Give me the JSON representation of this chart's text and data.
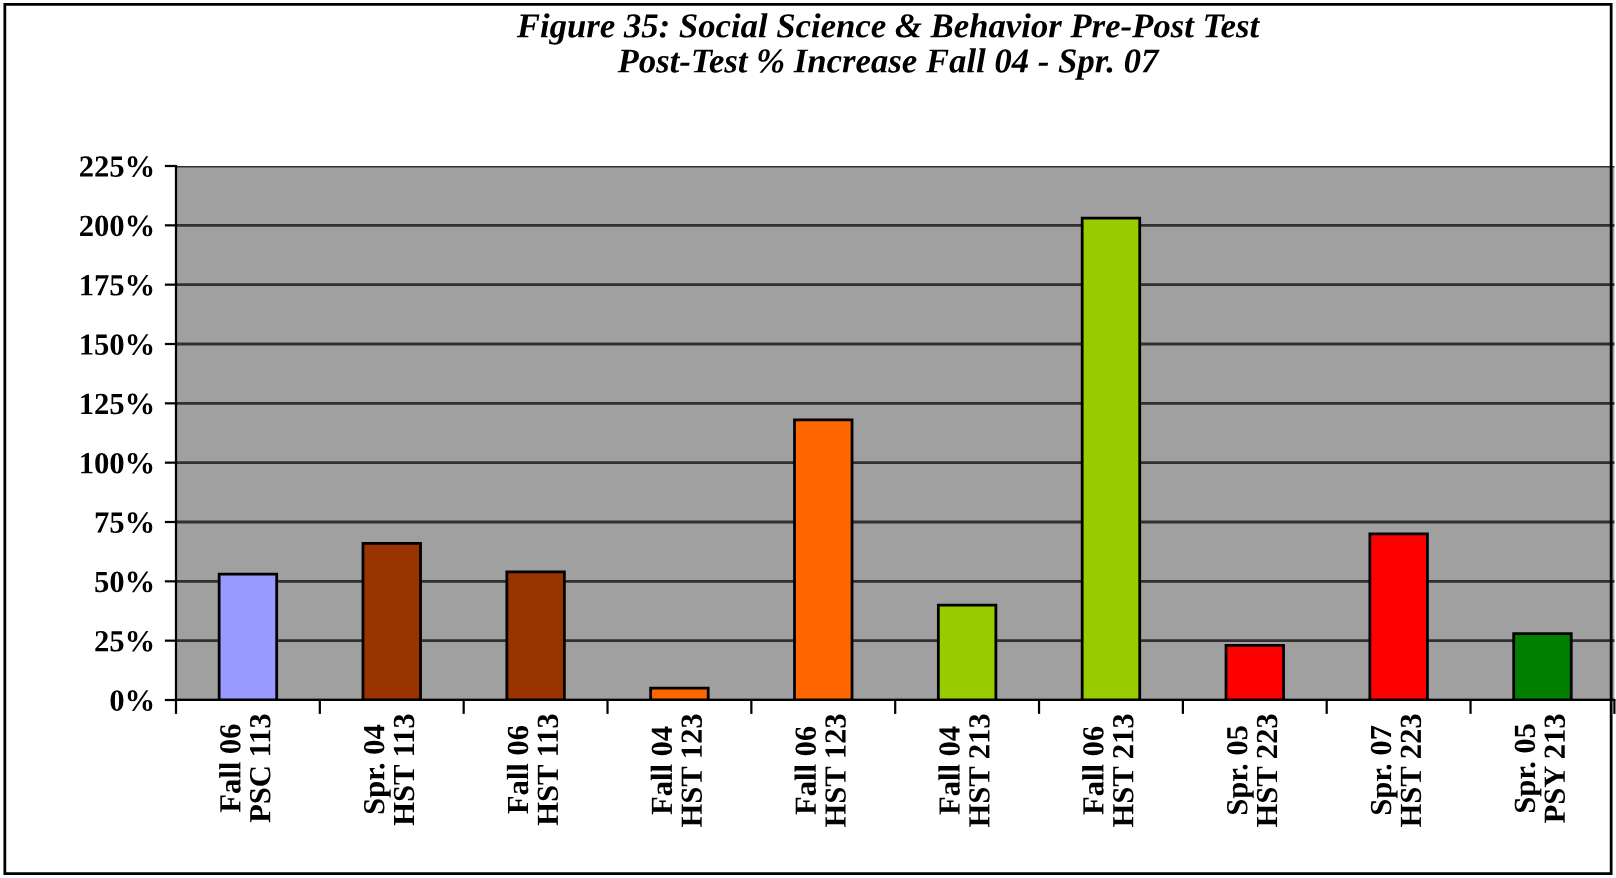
{
  "chart_data": {
    "type": "bar",
    "title": "Figure 35: Social Science & Behavior Pre-Post Test\nPost-Test % Increase Fall 04 - Spr. 07",
    "categories": [
      "Fall 06\nPSC 113",
      "Spr. 04\nHST 113",
      "Fall 06\nHST 113",
      "Fall 04\nHST 123",
      "Fall 06\nHST 123",
      "Fall 04\nHST 213",
      "Fall 06\nHST 213",
      "Spr. 05\nHST 223",
      "Spr. 07\nHST 223",
      "Spr. 05\nPSY 213"
    ],
    "values": [
      53,
      66,
      54,
      5,
      118,
      40,
      203,
      23,
      70,
      28
    ],
    "colors": [
      "#9999ff",
      "#993300",
      "#993300",
      "#ff6600",
      "#ff6600",
      "#99cc00",
      "#99cc00",
      "#ff0000",
      "#ff0000",
      "#008000"
    ],
    "ylim": [
      0,
      225
    ],
    "yticks": [
      {
        "value": 0,
        "label": "0%"
      },
      {
        "value": 25,
        "label": "25%"
      },
      {
        "value": 50,
        "label": "50%"
      },
      {
        "value": 75,
        "label": "75%"
      },
      {
        "value": 100,
        "label": "100%"
      },
      {
        "value": 125,
        "label": "125%"
      },
      {
        "value": 150,
        "label": "150%"
      },
      {
        "value": 175,
        "label": "175%"
      },
      {
        "value": 200,
        "label": "200%"
      },
      {
        "value": 225,
        "label": "225%"
      }
    ],
    "grid": "y",
    "legend": false
  }
}
